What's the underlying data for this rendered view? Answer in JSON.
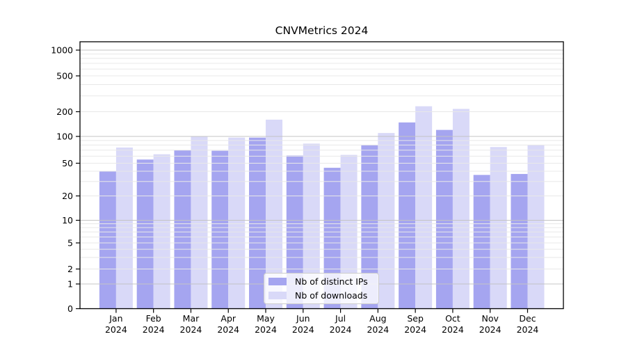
{
  "figure": {
    "title": "CNVMetrics 2024"
  },
  "chart_data": {
    "type": "bar",
    "title": "CNVMetrics 2024",
    "categories": [
      "Jan 2024",
      "Feb 2024",
      "Mar 2024",
      "Apr 2024",
      "May 2024",
      "Jun 2024",
      "Jul 2024",
      "Aug 2024",
      "Sep 2024",
      "Oct 2024",
      "Nov 2024",
      "Dec 2024"
    ],
    "series": [
      {
        "name": "Nb of distinct IPs",
        "color": "#a5a5f0",
        "values": [
          40,
          55,
          70,
          69,
          97,
          61,
          44,
          80,
          148,
          120,
          36,
          37
        ]
      },
      {
        "name": "Nb of downloads",
        "color": "#d9d9f8",
        "values": [
          75,
          63,
          100,
          97,
          160,
          83,
          62,
          110,
          230,
          215,
          76,
          80
        ]
      }
    ],
    "xlabel": "",
    "ylabel": "",
    "y_ticks": [
      0,
      1,
      2,
      5,
      10,
      20,
      50,
      100,
      200,
      500,
      1000
    ],
    "y_minor_ticks": [
      3,
      4,
      6,
      7,
      8,
      9,
      30,
      40,
      60,
      70,
      80,
      90,
      300,
      400,
      600,
      700,
      800,
      900
    ],
    "ylim": [
      0,
      1000
    ],
    "yscale": "log-like",
    "grid": true,
    "legend_position": "lower center"
  },
  "colors": {
    "bar_ips": "#a5a5f0",
    "bar_downloads": "#d9d9f8",
    "grid_major": "#c4c4c4",
    "grid_minor": "#e8e8e8",
    "axis": "#000000"
  }
}
